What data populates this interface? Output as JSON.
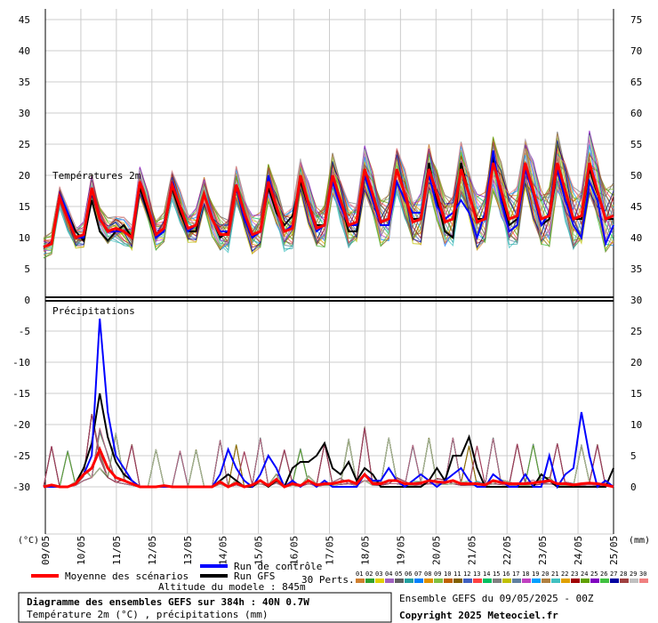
{
  "chart_data": {
    "type": "line",
    "x": [
      "09/05",
      "10/05",
      "11/05",
      "12/05",
      "13/05",
      "14/05",
      "15/05",
      "16/05",
      "17/05",
      "18/05",
      "19/05",
      "20/05",
      "21/05",
      "22/05",
      "23/05",
      "24/05",
      "25/05"
    ],
    "left_axis_ticks": [
      "45",
      "40",
      "35",
      "30",
      "25",
      "20",
      "15",
      "10",
      "5",
      "0",
      "-5",
      "-10",
      "-15",
      "-20",
      "-25",
      "-30"
    ],
    "right_axis_ticks": [
      "75",
      "70",
      "65",
      "60",
      "55",
      "50",
      "45",
      "40",
      "35",
      "30",
      "25",
      "20",
      "15",
      "10",
      "5",
      "0"
    ],
    "left_unit": "(°C)",
    "right_unit": "(mm)",
    "panel_labels": {
      "temperature": "Températures 2m",
      "precipitation": "Précipitations"
    },
    "temperature_panel": {
      "ylim": [
        5,
        45
      ],
      "series": [
        {
          "name": "Moyenne des scénarios",
          "color": "#ff0000",
          "values": [
            8.5,
            9,
            16.5,
            13,
            10,
            10.5,
            18,
            13,
            11,
            11.5,
            11,
            10,
            19,
            15,
            10.5,
            11.5,
            18.5,
            15,
            11.5,
            12,
            17,
            13,
            10.5,
            10.5,
            18.5,
            14,
            10.5,
            11,
            19,
            15,
            11,
            11.5,
            20,
            15.5,
            11.5,
            12,
            20,
            16,
            12,
            12.5,
            21,
            17,
            12.5,
            13,
            21,
            17,
            12.5,
            13,
            21,
            17,
            12.5,
            13,
            21,
            17,
            12.5,
            13,
            22,
            17.5,
            13,
            13.5,
            22,
            17.5,
            13,
            13.5,
            22,
            17.5,
            13,
            13.5,
            22,
            17.5,
            13,
            13.5
          ]
        },
        {
          "name": "Run de contrôle",
          "color": "#0000ff",
          "values": [
            8.5,
            9,
            17,
            14,
            10,
            10,
            18,
            13,
            11,
            11,
            11,
            10,
            19,
            15,
            10,
            11,
            19,
            15,
            11,
            12,
            17,
            13,
            11,
            11,
            18,
            13,
            10,
            11,
            20,
            15,
            11,
            12,
            20,
            15,
            11,
            12,
            19,
            15,
            12,
            12,
            20,
            16,
            12,
            12,
            19,
            16,
            14,
            14,
            20,
            15,
            13,
            14,
            16,
            14,
            10,
            14,
            24,
            16,
            11,
            12,
            21,
            17,
            12,
            14,
            21,
            16,
            12,
            10,
            19,
            16,
            9,
            12
          ]
        },
        {
          "name": "Run GFS",
          "color": "#000000",
          "values": [
            8.5,
            9,
            17,
            14,
            11,
            9.5,
            16,
            11,
            9.5,
            11,
            12,
            10,
            18,
            14,
            10,
            11,
            18,
            14,
            11,
            11,
            17,
            13,
            10,
            11,
            18,
            13,
            10,
            11,
            18,
            14,
            12,
            13.5,
            19,
            15,
            12,
            12,
            20,
            16,
            11,
            11,
            20,
            16,
            12,
            12,
            21,
            17,
            13,
            13,
            22,
            16,
            11,
            10,
            22,
            17,
            13,
            13,
            23,
            17,
            12,
            13,
            22,
            17,
            12,
            13,
            21,
            16,
            13,
            13,
            21,
            17,
            13,
            13
          ]
        }
      ]
    },
    "precipitation_panel": {
      "ylim": [
        0,
        30
      ],
      "series": [
        {
          "name": "Moyenne des scénarios",
          "color": "#ff0000",
          "values": [
            0,
            0.3,
            0,
            0,
            0.5,
            2,
            3,
            6,
            3,
            1.5,
            1,
            0.5,
            0,
            0,
            0,
            0.2,
            0,
            0,
            0,
            0,
            0,
            0,
            0.8,
            0,
            0.6,
            0,
            0.3,
            1,
            0.2,
            1.2,
            0,
            0.5,
            0.2,
            1,
            0.3,
            0.5,
            0.5,
            0.8,
            1,
            0.5,
            2,
            0.5,
            0.5,
            1,
            1,
            0.5,
            0.5,
            0.6,
            1,
            0.8,
            0.7,
            1,
            0.5,
            0.5,
            0.5,
            0.3,
            1,
            0.7,
            0.5,
            0.5,
            0.5,
            0.6,
            0.8,
            1,
            0.5,
            0.5,
            0.3,
            0.5,
            0.6,
            0.5,
            0.3,
            0
          ]
        },
        {
          "name": "Run de contrôle",
          "color": "#0000ff",
          "values": [
            0,
            0,
            0,
            0,
            0.5,
            2,
            5,
            27,
            12,
            5,
            3,
            1,
            0,
            0,
            0,
            0,
            0,
            0,
            0,
            0,
            0,
            0,
            2,
            6,
            3,
            1,
            0,
            2,
            5,
            3,
            0,
            1,
            0,
            1,
            0,
            1,
            0,
            0,
            0,
            0,
            2,
            1,
            1,
            3,
            1,
            0,
            1,
            2,
            1,
            0,
            1,
            2,
            3,
            1,
            0,
            0,
            2,
            1,
            0,
            0,
            2,
            0,
            0,
            5,
            0,
            2,
            3,
            12,
            5,
            0,
            1,
            0
          ]
        },
        {
          "name": "Run GFS",
          "color": "#000000",
          "values": [
            0,
            0,
            0,
            0,
            0.5,
            3,
            7,
            15,
            8,
            4,
            2,
            1,
            0,
            0,
            0,
            0,
            0,
            0,
            0,
            0,
            0,
            0,
            1,
            2,
            1,
            0,
            0,
            1,
            0,
            1,
            0,
            3,
            4,
            4,
            5,
            7,
            3,
            2,
            4,
            1,
            3,
            2,
            0,
            0,
            0,
            0,
            0,
            0,
            1,
            3,
            1,
            5,
            5,
            8,
            3,
            0,
            0,
            0,
            0,
            0,
            0,
            0,
            2,
            1,
            0,
            0,
            0,
            0,
            0,
            0,
            0,
            3
          ]
        }
      ]
    }
  },
  "legend": {
    "mean_label": "Moyenne des scénarios",
    "control_label": "Run de contrôle",
    "gfs_label": "Run GFS",
    "perts_label": "30 Perts.",
    "pert_numbers": [
      "01",
      "02",
      "03",
      "04",
      "05",
      "06",
      "07",
      "08",
      "09",
      "10",
      "11",
      "12",
      "13",
      "14",
      "15",
      "16",
      "17",
      "18",
      "19",
      "20",
      "21",
      "22",
      "23",
      "24",
      "25",
      "26",
      "27",
      "28",
      "29",
      "30"
    ],
    "pert_colors": [
      "#d08030",
      "#30a030",
      "#e0d000",
      "#a060c0",
      "#606060",
      "#20a0a0",
      "#0080ff",
      "#e09000",
      "#80c040",
      "#c06000",
      "#806000",
      "#4060c0",
      "#ff4040",
      "#00c060",
      "#808080",
      "#c0c000",
      "#6080a0",
      "#c040c0",
      "#00a0ff",
      "#b08040",
      "#40c0c0",
      "#e0a000",
      "#a00000",
      "#60a000",
      "#8000c0",
      "#40c040",
      "#0000a0",
      "#a04040",
      "#c0c0c0",
      "#f08080"
    ]
  },
  "footer": {
    "altitude": "Altitude du modele : 845m",
    "title": "Diagramme des ensembles GEFS sur 384h : 40N 0.7W",
    "subtitle": "Température 2m (°C) , précipitations (mm)",
    "ensemble": "Ensemble GEFS du 09/05/2025 - 00Z",
    "copyright": "Copyright 2025 Meteociel.fr"
  }
}
